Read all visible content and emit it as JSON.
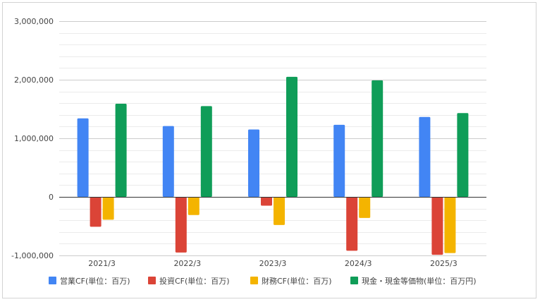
{
  "chart_data": {
    "type": "bar",
    "title": "",
    "xlabel": "",
    "ylabel": "",
    "categories": [
      "2021/3",
      "2022/3",
      "2023/3",
      "2024/3",
      "2025/3"
    ],
    "ylim": [
      -1000000,
      3000000
    ],
    "yticks": [
      3000000,
      2000000,
      1000000,
      0,
      -1000000
    ],
    "ytick_labels": [
      "3,000,000",
      "2,000,000",
      "1,000,000",
      "0",
      "-1,000,000"
    ],
    "grid": true,
    "legend_position": "bottom",
    "series": [
      {
        "name": "営業CF(単位：百万)",
        "color": "#4285f4",
        "values": [
          1340000,
          1210000,
          1150000,
          1230000,
          1365000
        ]
      },
      {
        "name": "投資CF(単位：百万)",
        "color": "#db4437",
        "values": [
          -510000,
          -950000,
          -150000,
          -920000,
          -990000
        ]
      },
      {
        "name": "財務CF(単位：百万)",
        "color": "#f4b400",
        "values": [
          -390000,
          -310000,
          -480000,
          -360000,
          -960000
        ]
      },
      {
        "name": "現金・現金等価物(単位：百万円)",
        "color": "#0f9d58",
        "values": [
          1590000,
          1550000,
          2050000,
          1990000,
          1430000
        ]
      }
    ]
  }
}
